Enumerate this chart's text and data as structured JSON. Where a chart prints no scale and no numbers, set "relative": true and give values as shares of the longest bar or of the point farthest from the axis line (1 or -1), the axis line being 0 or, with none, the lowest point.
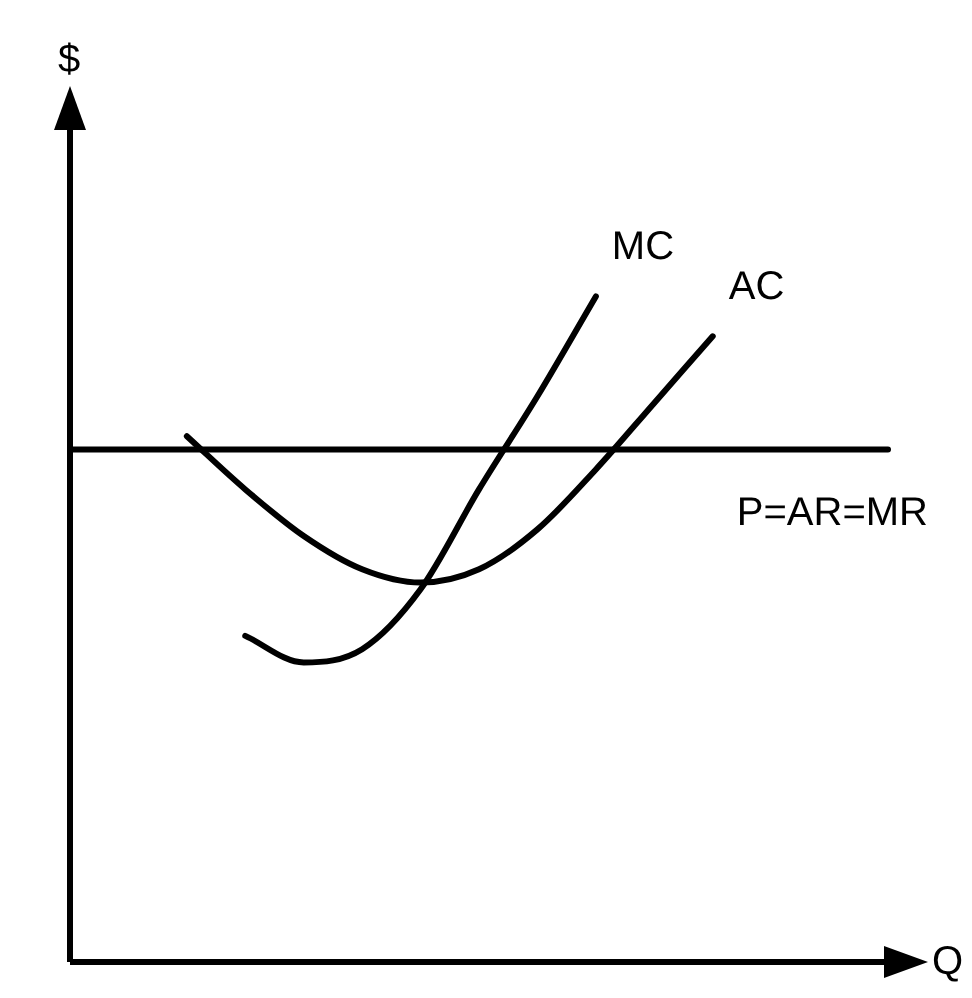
{
  "chart_data": {
    "type": "line",
    "relative": true,
    "xlabel": "Q",
    "annotations": [
      "$"
    ],
    "legend": false,
    "marker": "none",
    "line_style": "solid",
    "categories": [
      null,
      null,
      null,
      null,
      null,
      null,
      null,
      null,
      null,
      null,
      null,
      null,
      null,
      null,
      null
    ],
    "series": [
      {
        "name": "MC",
        "color": "#000000",
        "values": [
          null,
          null,
          null,
          0.49,
          0.45,
          0.47,
          0.56,
          0.71,
          0.85,
          1,
          null,
          null,
          null,
          null,
          null
        ]
      },
      {
        "name": "AC",
        "color": "#000000",
        "values": [
          null,
          null,
          0.79,
          0.71,
          0.64,
          0.59,
          0.57,
          0.59,
          0.65,
          0.74,
          0.84,
          0.94,
          null,
          null,
          null
        ]
      },
      {
        "name": "P=AR=MR",
        "color": "#000000",
        "values": [
          0.77,
          0.77,
          0.77,
          0.77,
          0.77,
          0.77,
          0.77,
          0.77,
          0.77,
          0.77,
          0.77,
          0.77,
          0.77,
          0.77,
          0.77
        ]
      }
    ]
  }
}
